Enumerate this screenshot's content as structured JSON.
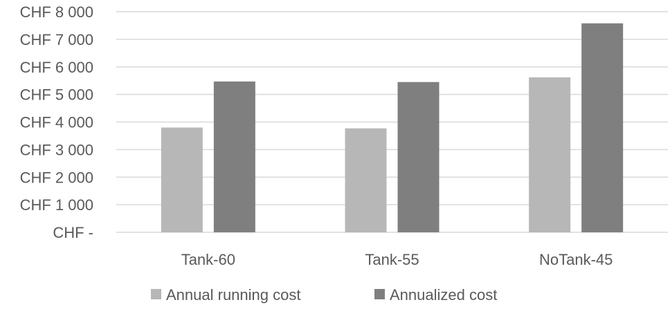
{
  "chart_data": {
    "type": "bar",
    "categories": [
      "Tank-60",
      "Tank-55",
      "NoTank-45"
    ],
    "series": [
      {
        "name": "Annual running cost",
        "values": [
          3800,
          3770,
          5620
        ],
        "color": "#b7b7b7"
      },
      {
        "name": "Annualized cost",
        "values": [
          5470,
          5450,
          7580
        ],
        "color": "#7f7f7f"
      }
    ],
    "ylim": [
      0,
      8000
    ],
    "yticks": [
      0,
      1000,
      2000,
      3000,
      4000,
      5000,
      6000,
      7000,
      8000
    ],
    "ytick_labels": [
      "CHF -",
      "CHF 1 000",
      "CHF 2 000",
      "CHF 3 000",
      "CHF 4 000",
      "CHF 5 000",
      "CHF 6 000",
      "CHF 7 000",
      "CHF 8 000"
    ],
    "grid": true,
    "legend_position": "bottom",
    "title": "",
    "xlabel": "",
    "ylabel": ""
  },
  "colors": {
    "gridline": "#d9d9d9",
    "text": "#595959"
  }
}
